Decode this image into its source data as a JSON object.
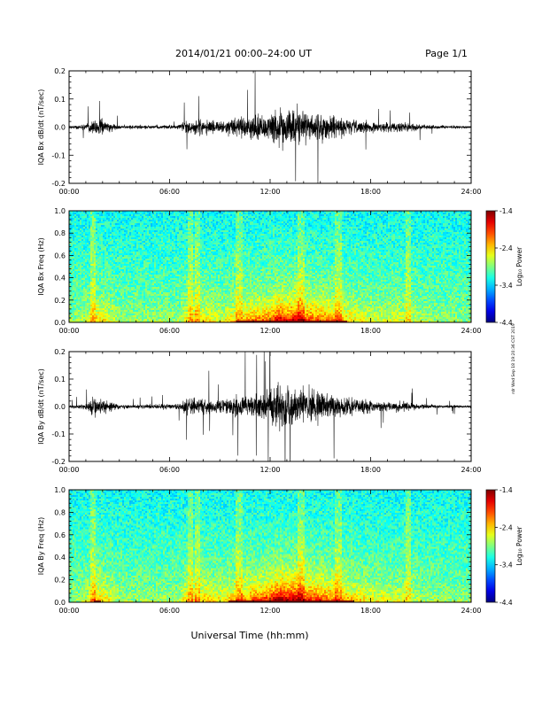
{
  "header": {
    "title": "2014/01/21  00:00–24:00 UT",
    "page": "Page 1/1"
  },
  "footer": {
    "xlabel": "Universal Time (hh:mm)"
  },
  "side_note": "rdr Wed Sep 18 19:20:36 CST 2019",
  "chart_data": [
    {
      "type": "line",
      "ylabel": "IQA Bx dB/dt (nT/sec)",
      "xlim": [
        0,
        24
      ],
      "ylim": [
        -0.2,
        0.2
      ],
      "x_ticks": [
        "00:00",
        "06:00",
        "12:00",
        "18:00",
        "24:00"
      ],
      "y_ticks": [
        "0.2",
        "0.1",
        "0.0",
        "-0.1",
        "-0.2"
      ],
      "activity_profile": {
        "hours": [
          0,
          1,
          1.5,
          2.5,
          3,
          6.5,
          7,
          7.5,
          9,
          10,
          11,
          12,
          12.5,
          13,
          13.5,
          14,
          15,
          16,
          17,
          18,
          19,
          20,
          21,
          22,
          24
        ],
        "amplitude": [
          0.008,
          0.02,
          0.05,
          0.03,
          0.012,
          0.012,
          0.04,
          0.05,
          0.03,
          0.05,
          0.07,
          0.08,
          0.12,
          0.1,
          0.12,
          0.09,
          0.08,
          0.06,
          0.04,
          0.03,
          0.025,
          0.03,
          0.015,
          0.01,
          0.008
        ]
      }
    },
    {
      "type": "heatmap",
      "ylabel": "IQA Bx Freq (Hz)",
      "xlim": [
        0,
        24
      ],
      "ylim": [
        0,
        1.0
      ],
      "x_ticks": [
        "00:00",
        "06:00",
        "12:00",
        "18:00",
        "24:00"
      ],
      "y_ticks": [
        "1.0",
        "0.8",
        "0.6",
        "0.4",
        "0.2",
        "0.0"
      ],
      "colorbar": {
        "label": "Log₁₀ Power",
        "range": [
          -4.4,
          -1.4
        ],
        "ticks": [
          "-1.4",
          "-2.4",
          "-3.4",
          "-4.4"
        ]
      }
    },
    {
      "type": "line",
      "ylabel": "IQA By dB/dt (nT/sec)",
      "xlim": [
        0,
        24
      ],
      "ylim": [
        -0.2,
        0.2
      ],
      "x_ticks": [
        "00:00",
        "06:00",
        "12:00",
        "18:00",
        "24:00"
      ],
      "y_ticks": [
        "0.2",
        "0.1",
        "0.0",
        "-0.1",
        "-0.2"
      ],
      "activity_profile": {
        "hours": [
          0,
          1,
          1.5,
          2.5,
          3,
          6.5,
          7,
          8,
          9,
          10,
          11,
          12,
          12.5,
          13,
          13.5,
          14,
          15,
          16,
          17,
          18,
          19,
          20,
          21,
          22,
          24
        ],
        "amplitude": [
          0.008,
          0.02,
          0.06,
          0.03,
          0.012,
          0.015,
          0.05,
          0.05,
          0.04,
          0.06,
          0.08,
          0.1,
          0.14,
          0.12,
          0.13,
          0.1,
          0.09,
          0.07,
          0.05,
          0.04,
          0.03,
          0.03,
          0.015,
          0.01,
          0.008
        ]
      }
    },
    {
      "type": "heatmap",
      "ylabel": "IQA By Freq (Hz)",
      "xlim": [
        0,
        24
      ],
      "ylim": [
        0,
        1.0
      ],
      "x_ticks": [
        "00:00",
        "06:00",
        "12:00",
        "18:00",
        "24:00"
      ],
      "y_ticks": [
        "1.0",
        "0.8",
        "0.6",
        "0.4",
        "0.2",
        "0.0"
      ],
      "colorbar": {
        "label": "Log₁₀ Power",
        "range": [
          -4.4,
          -1.4
        ],
        "ticks": [
          "-1.4",
          "-2.4",
          "-3.4",
          "-4.4"
        ]
      }
    }
  ]
}
